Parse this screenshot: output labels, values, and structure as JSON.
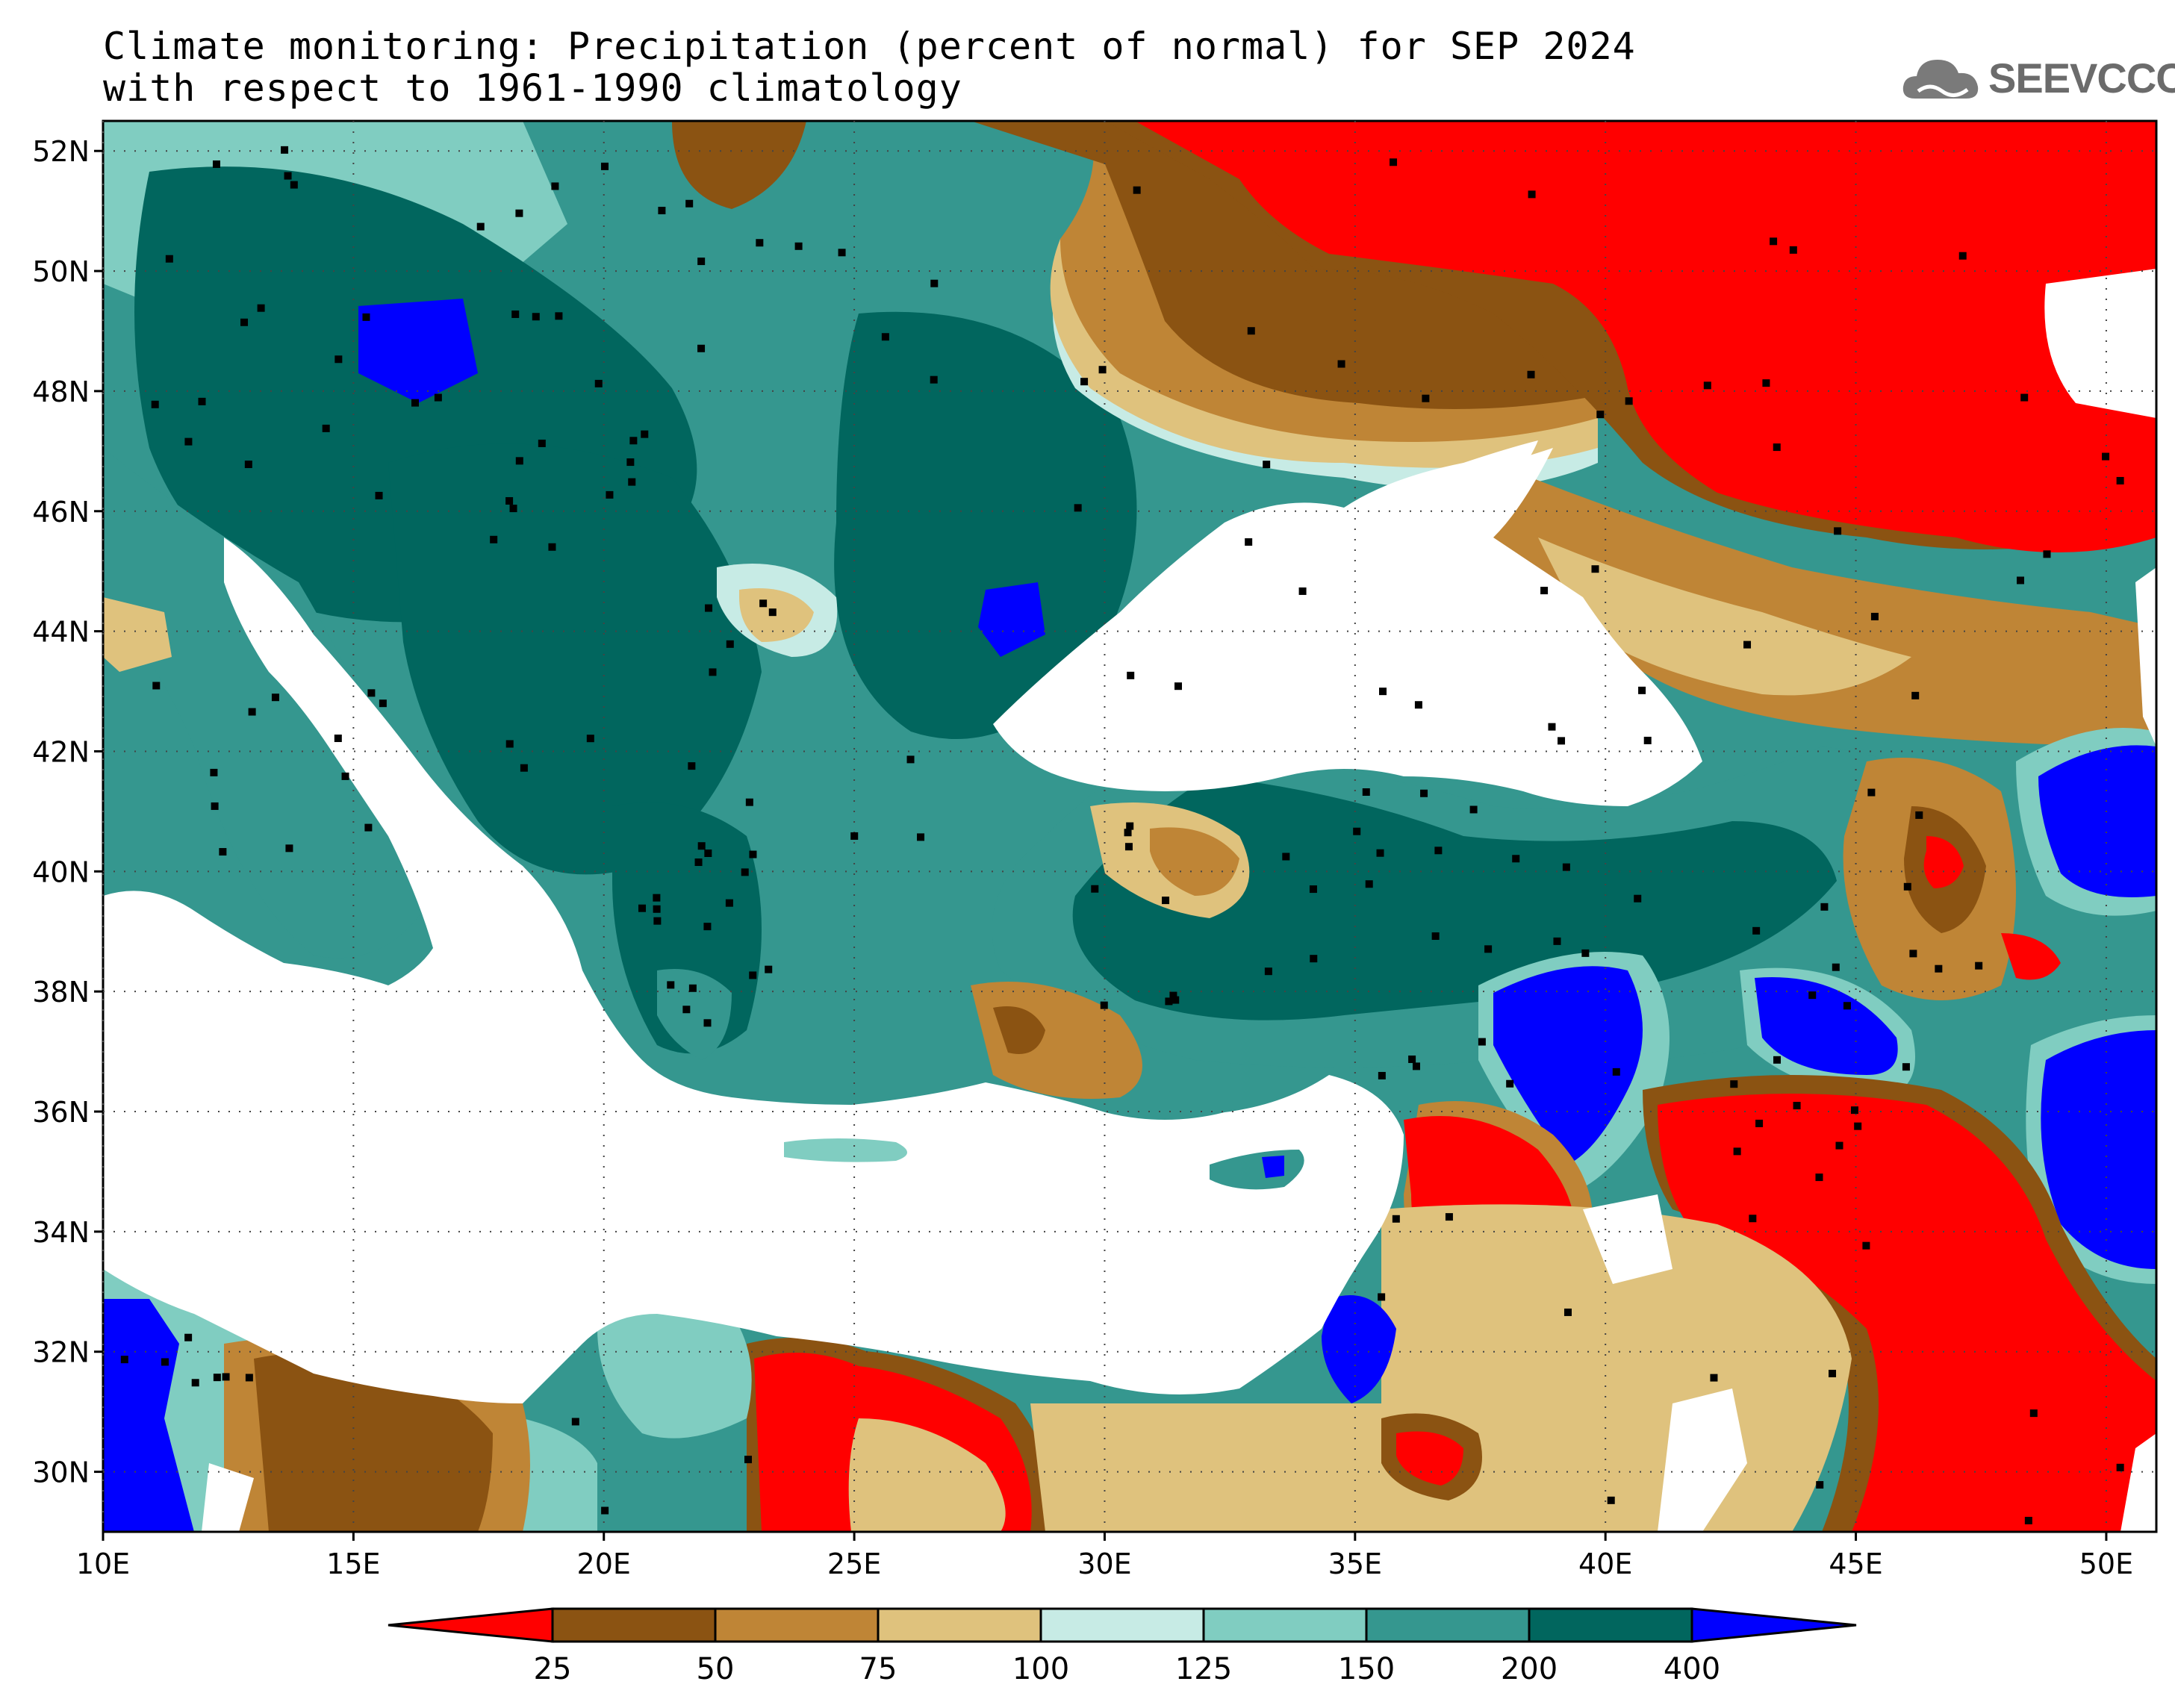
{
  "title": {
    "line1": "Climate monitoring: Precipitation (percent of normal) for SEP 2024",
    "line2": "with respect to 1961-1990 climatology"
  },
  "logo": {
    "text": "SEEVCCC",
    "icon": "cloud-icon"
  },
  "map": {
    "lon_range": [
      10,
      51
    ],
    "lat_range": [
      29,
      52.5
    ],
    "lat_ticks": [
      "52N",
      "50N",
      "48N",
      "46N",
      "44N",
      "42N",
      "40N",
      "38N",
      "36N",
      "34N",
      "32N",
      "30N"
    ],
    "lon_ticks": [
      "10E",
      "15E",
      "20E",
      "25E",
      "30E",
      "35E",
      "40E",
      "45E",
      "50E"
    ],
    "grid": "dotted"
  },
  "legend": {
    "labels": [
      "25",
      "50",
      "75",
      "100",
      "125",
      "150",
      "200",
      "400"
    ],
    "colors": [
      "#ff0000",
      "#8b5312",
      "#bf8536",
      "#dfc27d",
      "#c7ebe5",
      "#80cdc1",
      "#35978f",
      "#01665e",
      "#0000ff"
    ]
  }
}
